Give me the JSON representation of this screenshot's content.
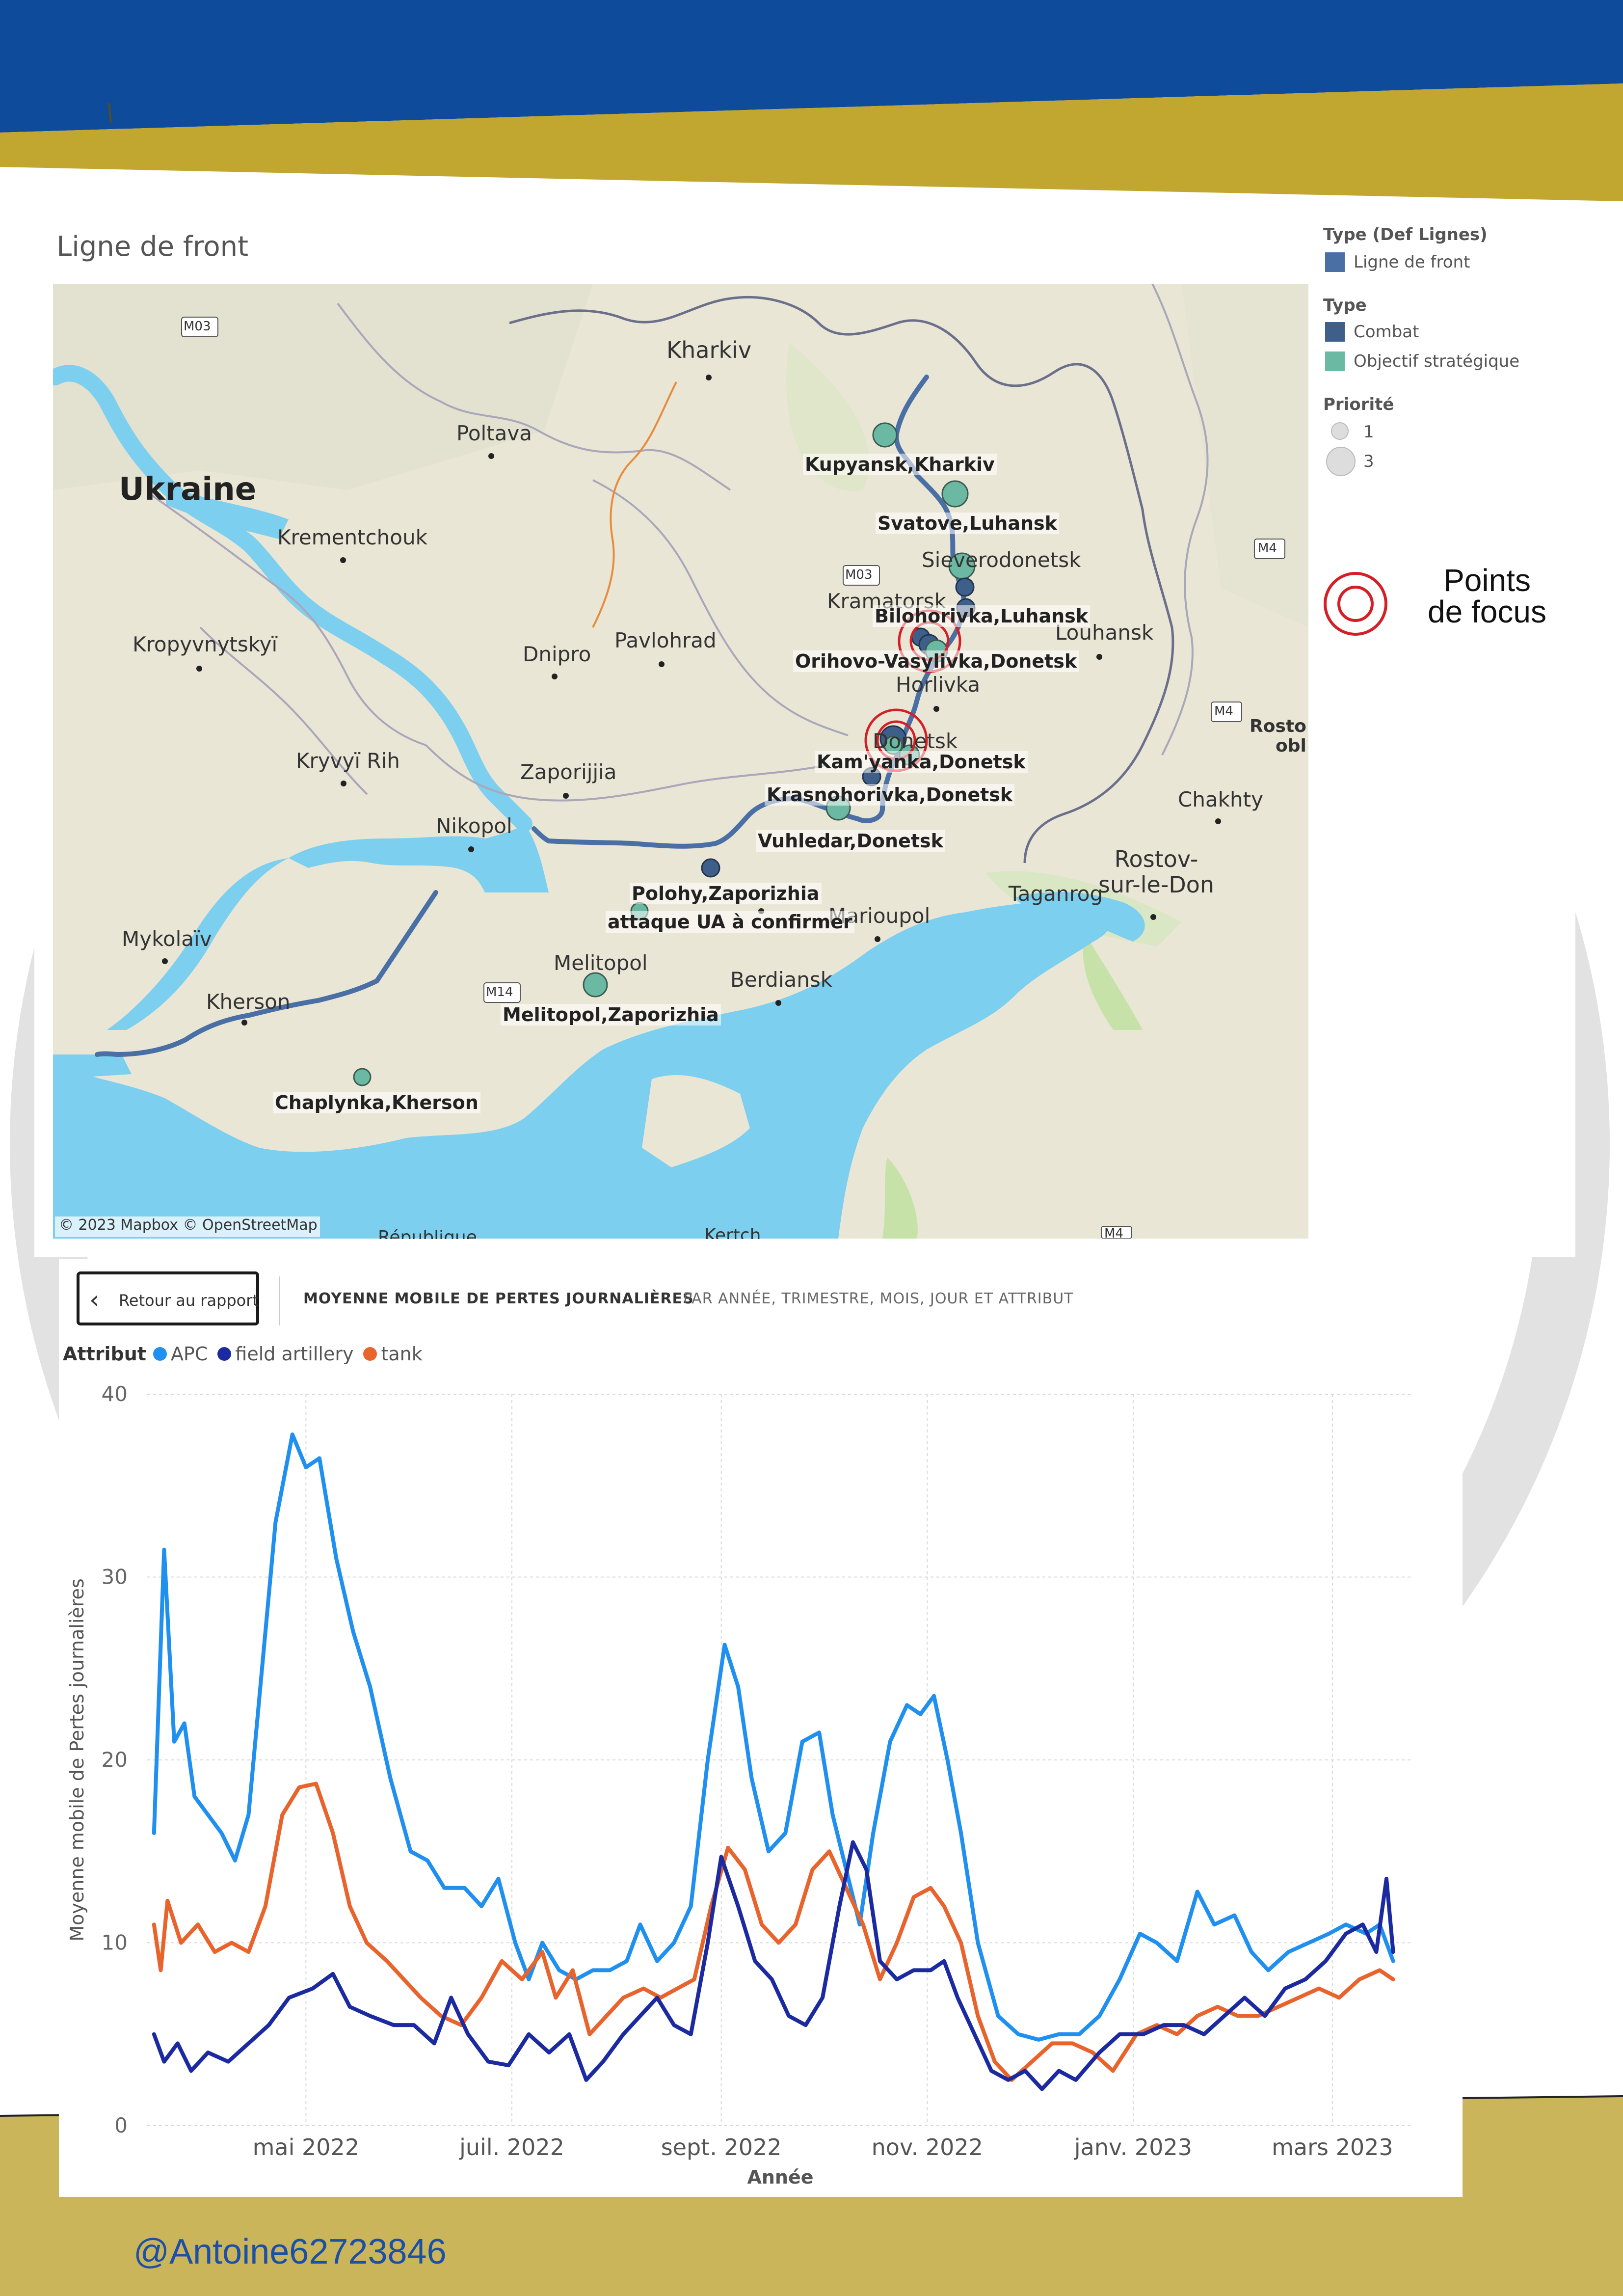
{
  "map": {
    "title": "Ligne de front",
    "copyright": "© 2023 Mapbox © OpenStreetMap",
    "places": {
      "kharkiv": "Kharkiv",
      "poltava": "Poltava",
      "ukraine": "Ukraine",
      "krementchouk": "Krementchouk",
      "kropyvnytskyi": "Kropyvnytskyï",
      "dnipro": "Dnipro",
      "pavlohrad": "Pavlohrad",
      "kryvyi_rih": "Kryvyï Rih",
      "zaporijjia": "Zaporijjia",
      "nikopol": "Nikopol",
      "mykolaiv": "Mykolaïv",
      "kherson": "Kherson",
      "melitopol": "Melitopol",
      "berdiansk": "Berdiansk",
      "marioupol": "Marioupol",
      "taganrog": "Taganrog",
      "rostov": "Rostov-\nsur-le-Don",
      "chakhty": "Chakhty",
      "louhansk": "Louhansk",
      "severodonetsk": "Sieverodonetsk",
      "kramatorsk": "Kramatorsk",
      "horlivka": "Horlivka",
      "donetsk": "Donetsk",
      "rosto_obl": "Rosto\nobl",
      "republique": "République",
      "kertch": "Kertch",
      "m03a": "M03",
      "m03b": "M03",
      "m14": "M14",
      "m04a": "M4",
      "m04b": "M4",
      "m04c": "M4"
    },
    "objectives": {
      "kupyansk": "Kupyansk,Kharkiv",
      "svatove": "Svatove,Luhansk",
      "bilohorivka": "Bilohorivka,Luhansk",
      "orihovo": "Orihovo-Vasylivka,Donetsk",
      "kamyanka": "Kam'yanka,Donetsk",
      "krasnohorivka": "Krasnohorivka,Donetsk",
      "vuhledar": "Vuhledar,Donetsk",
      "polohy": "Polohy,Zaporizhia",
      "polohy_note": "attaque UA à confirmer",
      "melitopol": "Melitopol,Zaporizhia",
      "chaplynka": "Chaplynka,Kherson"
    },
    "legend": {
      "type_def_lignes": "Type (Def Lignes)",
      "ligne_de_front": "Ligne de front",
      "type": "Type",
      "combat": "Combat",
      "objectif": "Objectif stratégique",
      "priorite": "Priorité",
      "p1": "1",
      "p3": "3",
      "focus_line1": "Points",
      "focus_line2": "de focus"
    },
    "colors": {
      "front_line": "#4a6fa5",
      "combat": "#3e5f8a",
      "objective": "#6bb8a3",
      "focus_ring": "#d51f26",
      "water": "#7ccfee",
      "land": "#eae6d6"
    }
  },
  "report": {
    "back_button": "Retour au rapport",
    "title": "MOYENNE MOBILE DE PERTES JOURNALIÈRES",
    "subtitle": "PAR ANNÉE, TRIMESTRE, MOIS, JOUR ET ATTRIBUT",
    "legend_title": "Attribut"
  },
  "chart_data": {
    "type": "line",
    "title": "",
    "xlabel": "Année",
    "ylabel": "Moyenne mobile de Pertes journalières",
    "ylim": [
      0,
      40
    ],
    "yticks": [
      0,
      10,
      20,
      30,
      40
    ],
    "xlim": [
      "2022-03-15",
      "2023-03-25"
    ],
    "xticks": [
      {
        "date": "2022-05-01",
        "label": "mai 2022"
      },
      {
        "date": "2022-07-01",
        "label": "juil. 2022"
      },
      {
        "date": "2022-09-01",
        "label": "sept. 2022"
      },
      {
        "date": "2022-11-01",
        "label": "nov. 2022"
      },
      {
        "date": "2023-01-01",
        "label": "janv. 2023"
      },
      {
        "date": "2023-03-01",
        "label": "mars 2023"
      }
    ],
    "grid": true,
    "legend_position": "top-left",
    "series": [
      {
        "name": "APC",
        "color": "#1f8ff0",
        "points": [
          [
            "2022-03-17",
            16
          ],
          [
            "2022-03-20",
            31.5
          ],
          [
            "2022-03-23",
            21
          ],
          [
            "2022-03-26",
            22
          ],
          [
            "2022-03-29",
            18
          ],
          [
            "2022-04-02",
            17
          ],
          [
            "2022-04-06",
            16
          ],
          [
            "2022-04-10",
            14.5
          ],
          [
            "2022-04-14",
            17
          ],
          [
            "2022-04-18",
            25
          ],
          [
            "2022-04-22",
            33
          ],
          [
            "2022-04-27",
            37.8
          ],
          [
            "2022-05-01",
            36
          ],
          [
            "2022-05-05",
            36.5
          ],
          [
            "2022-05-10",
            31
          ],
          [
            "2022-05-15",
            27
          ],
          [
            "2022-05-20",
            24
          ],
          [
            "2022-05-26",
            19
          ],
          [
            "2022-06-01",
            15
          ],
          [
            "2022-06-06",
            14.5
          ],
          [
            "2022-06-11",
            13
          ],
          [
            "2022-06-17",
            13
          ],
          [
            "2022-06-22",
            12
          ],
          [
            "2022-06-27",
            13.5
          ],
          [
            "2022-07-02",
            10
          ],
          [
            "2022-07-06",
            8
          ],
          [
            "2022-07-10",
            10
          ],
          [
            "2022-07-15",
            8.5
          ],
          [
            "2022-07-20",
            8
          ],
          [
            "2022-07-25",
            8.5
          ],
          [
            "2022-07-30",
            8.5
          ],
          [
            "2022-08-04",
            9
          ],
          [
            "2022-08-08",
            11
          ],
          [
            "2022-08-13",
            9
          ],
          [
            "2022-08-18",
            10
          ],
          [
            "2022-08-23",
            12
          ],
          [
            "2022-08-28",
            20
          ],
          [
            "2022-09-02",
            26.3
          ],
          [
            "2022-09-06",
            24
          ],
          [
            "2022-09-10",
            19
          ],
          [
            "2022-09-15",
            15
          ],
          [
            "2022-09-20",
            16
          ],
          [
            "2022-09-25",
            21
          ],
          [
            "2022-09-30",
            21.5
          ],
          [
            "2022-10-04",
            17
          ],
          [
            "2022-10-08",
            14
          ],
          [
            "2022-10-12",
            11
          ],
          [
            "2022-10-16",
            16
          ],
          [
            "2022-10-21",
            21
          ],
          [
            "2022-10-26",
            23
          ],
          [
            "2022-10-30",
            22.5
          ],
          [
            "2022-11-03",
            23.5
          ],
          [
            "2022-11-07",
            20
          ],
          [
            "2022-11-11",
            16
          ],
          [
            "2022-11-16",
            10
          ],
          [
            "2022-11-22",
            6
          ],
          [
            "2022-11-28",
            5
          ],
          [
            "2022-12-04",
            4.7
          ],
          [
            "2022-12-10",
            5
          ],
          [
            "2022-12-16",
            5
          ],
          [
            "2022-12-22",
            6
          ],
          [
            "2022-12-28",
            8
          ],
          [
            "2023-01-03",
            10.5
          ],
          [
            "2023-01-08",
            10
          ],
          [
            "2023-01-14",
            9
          ],
          [
            "2023-01-20",
            12.8
          ],
          [
            "2023-01-25",
            11
          ],
          [
            "2023-01-31",
            11.5
          ],
          [
            "2023-02-05",
            9.5
          ],
          [
            "2023-02-10",
            8.5
          ],
          [
            "2023-02-16",
            9.5
          ],
          [
            "2023-02-22",
            10
          ],
          [
            "2023-02-28",
            10.5
          ],
          [
            "2023-03-05",
            11
          ],
          [
            "2023-03-11",
            10.5
          ],
          [
            "2023-03-15",
            11
          ],
          [
            "2023-03-19",
            9
          ]
        ]
      },
      {
        "name": "field artillery",
        "color": "#1b2aa0",
        "points": [
          [
            "2022-03-17",
            5
          ],
          [
            "2022-03-20",
            3.5
          ],
          [
            "2022-03-24",
            4.5
          ],
          [
            "2022-03-28",
            3
          ],
          [
            "2022-04-02",
            4
          ],
          [
            "2022-04-08",
            3.5
          ],
          [
            "2022-04-14",
            4.5
          ],
          [
            "2022-04-20",
            5.5
          ],
          [
            "2022-04-26",
            7
          ],
          [
            "2022-05-03",
            7.5
          ],
          [
            "2022-05-09",
            8.3
          ],
          [
            "2022-05-14",
            6.5
          ],
          [
            "2022-05-20",
            6
          ],
          [
            "2022-05-27",
            5.5
          ],
          [
            "2022-06-02",
            5.5
          ],
          [
            "2022-06-08",
            4.5
          ],
          [
            "2022-06-13",
            7
          ],
          [
            "2022-06-18",
            5
          ],
          [
            "2022-06-24",
            3.5
          ],
          [
            "2022-06-30",
            3.3
          ],
          [
            "2022-07-06",
            5
          ],
          [
            "2022-07-12",
            4
          ],
          [
            "2022-07-18",
            5
          ],
          [
            "2022-07-23",
            2.5
          ],
          [
            "2022-07-28",
            3.5
          ],
          [
            "2022-08-03",
            5
          ],
          [
            "2022-08-08",
            6
          ],
          [
            "2022-08-13",
            7
          ],
          [
            "2022-08-18",
            5.5
          ],
          [
            "2022-08-23",
            5
          ],
          [
            "2022-08-28",
            10
          ],
          [
            "2022-09-01",
            14.7
          ],
          [
            "2022-09-06",
            12
          ],
          [
            "2022-09-11",
            9
          ],
          [
            "2022-09-16",
            8
          ],
          [
            "2022-09-21",
            6
          ],
          [
            "2022-09-26",
            5.5
          ],
          [
            "2022-10-01",
            7
          ],
          [
            "2022-10-06",
            12
          ],
          [
            "2022-10-10",
            15.5
          ],
          [
            "2022-10-14",
            14
          ],
          [
            "2022-10-18",
            9
          ],
          [
            "2022-10-23",
            8
          ],
          [
            "2022-10-28",
            8.5
          ],
          [
            "2022-11-02",
            8.5
          ],
          [
            "2022-11-06",
            9
          ],
          [
            "2022-11-10",
            7
          ],
          [
            "2022-11-15",
            5
          ],
          [
            "2022-11-20",
            3
          ],
          [
            "2022-11-25",
            2.5
          ],
          [
            "2022-11-30",
            3
          ],
          [
            "2022-12-05",
            2
          ],
          [
            "2022-12-10",
            3
          ],
          [
            "2022-12-15",
            2.5
          ],
          [
            "2022-12-22",
            4
          ],
          [
            "2022-12-28",
            5
          ],
          [
            "2023-01-04",
            5
          ],
          [
            "2023-01-10",
            5.5
          ],
          [
            "2023-01-16",
            5.5
          ],
          [
            "2023-01-22",
            5
          ],
          [
            "2023-01-28",
            6
          ],
          [
            "2023-02-03",
            7
          ],
          [
            "2023-02-09",
            6
          ],
          [
            "2023-02-15",
            7.5
          ],
          [
            "2023-02-21",
            8
          ],
          [
            "2023-02-27",
            9
          ],
          [
            "2023-03-05",
            10.5
          ],
          [
            "2023-03-10",
            11
          ],
          [
            "2023-03-14",
            9.5
          ],
          [
            "2023-03-17",
            13.5
          ],
          [
            "2023-03-19",
            9.5
          ]
        ]
      },
      {
        "name": "tank",
        "color": "#e8642c",
        "points": [
          [
            "2022-03-17",
            11
          ],
          [
            "2022-03-19",
            8.5
          ],
          [
            "2022-03-21",
            12.3
          ],
          [
            "2022-03-25",
            10
          ],
          [
            "2022-03-30",
            11
          ],
          [
            "2022-04-04",
            9.5
          ],
          [
            "2022-04-09",
            10
          ],
          [
            "2022-04-14",
            9.5
          ],
          [
            "2022-04-19",
            12
          ],
          [
            "2022-04-24",
            17
          ],
          [
            "2022-04-29",
            18.5
          ],
          [
            "2022-05-04",
            18.7
          ],
          [
            "2022-05-09",
            16
          ],
          [
            "2022-05-14",
            12
          ],
          [
            "2022-05-19",
            10
          ],
          [
            "2022-05-25",
            9
          ],
          [
            "2022-05-30",
            8
          ],
          [
            "2022-06-04",
            7
          ],
          [
            "2022-06-10",
            6
          ],
          [
            "2022-06-16",
            5.5
          ],
          [
            "2022-06-22",
            7
          ],
          [
            "2022-06-28",
            9
          ],
          [
            "2022-07-04",
            8
          ],
          [
            "2022-07-10",
            9.5
          ],
          [
            "2022-07-14",
            7
          ],
          [
            "2022-07-19",
            8.5
          ],
          [
            "2022-07-24",
            5
          ],
          [
            "2022-07-29",
            6
          ],
          [
            "2022-08-03",
            7
          ],
          [
            "2022-08-09",
            7.5
          ],
          [
            "2022-08-14",
            7
          ],
          [
            "2022-08-19",
            7.5
          ],
          [
            "2022-08-24",
            8
          ],
          [
            "2022-08-29",
            12
          ],
          [
            "2022-09-03",
            15.2
          ],
          [
            "2022-09-08",
            14
          ],
          [
            "2022-09-13",
            11
          ],
          [
            "2022-09-18",
            10
          ],
          [
            "2022-09-23",
            11
          ],
          [
            "2022-09-28",
            14
          ],
          [
            "2022-10-03",
            15
          ],
          [
            "2022-10-08",
            13
          ],
          [
            "2022-10-13",
            11
          ],
          [
            "2022-10-18",
            8
          ],
          [
            "2022-10-23",
            10
          ],
          [
            "2022-10-28",
            12.5
          ],
          [
            "2022-11-02",
            13
          ],
          [
            "2022-11-06",
            12
          ],
          [
            "2022-11-11",
            10
          ],
          [
            "2022-11-16",
            6
          ],
          [
            "2022-11-21",
            3.5
          ],
          [
            "2022-11-26",
            2.5
          ],
          [
            "2022-12-02",
            3.5
          ],
          [
            "2022-12-08",
            4.5
          ],
          [
            "2022-12-14",
            4.5
          ],
          [
            "2022-12-20",
            4
          ],
          [
            "2022-12-26",
            3
          ],
          [
            "2023-01-02",
            5
          ],
          [
            "2023-01-08",
            5.5
          ],
          [
            "2023-01-14",
            5
          ],
          [
            "2023-01-20",
            6
          ],
          [
            "2023-01-26",
            6.5
          ],
          [
            "2023-02-01",
            6
          ],
          [
            "2023-02-07",
            6
          ],
          [
            "2023-02-13",
            6.5
          ],
          [
            "2023-02-19",
            7
          ],
          [
            "2023-02-25",
            7.5
          ],
          [
            "2023-03-03",
            7
          ],
          [
            "2023-03-09",
            8
          ],
          [
            "2023-03-15",
            8.5
          ],
          [
            "2023-03-19",
            8
          ]
        ]
      }
    ]
  },
  "footer": {
    "handle": "@Antoine62723846"
  }
}
